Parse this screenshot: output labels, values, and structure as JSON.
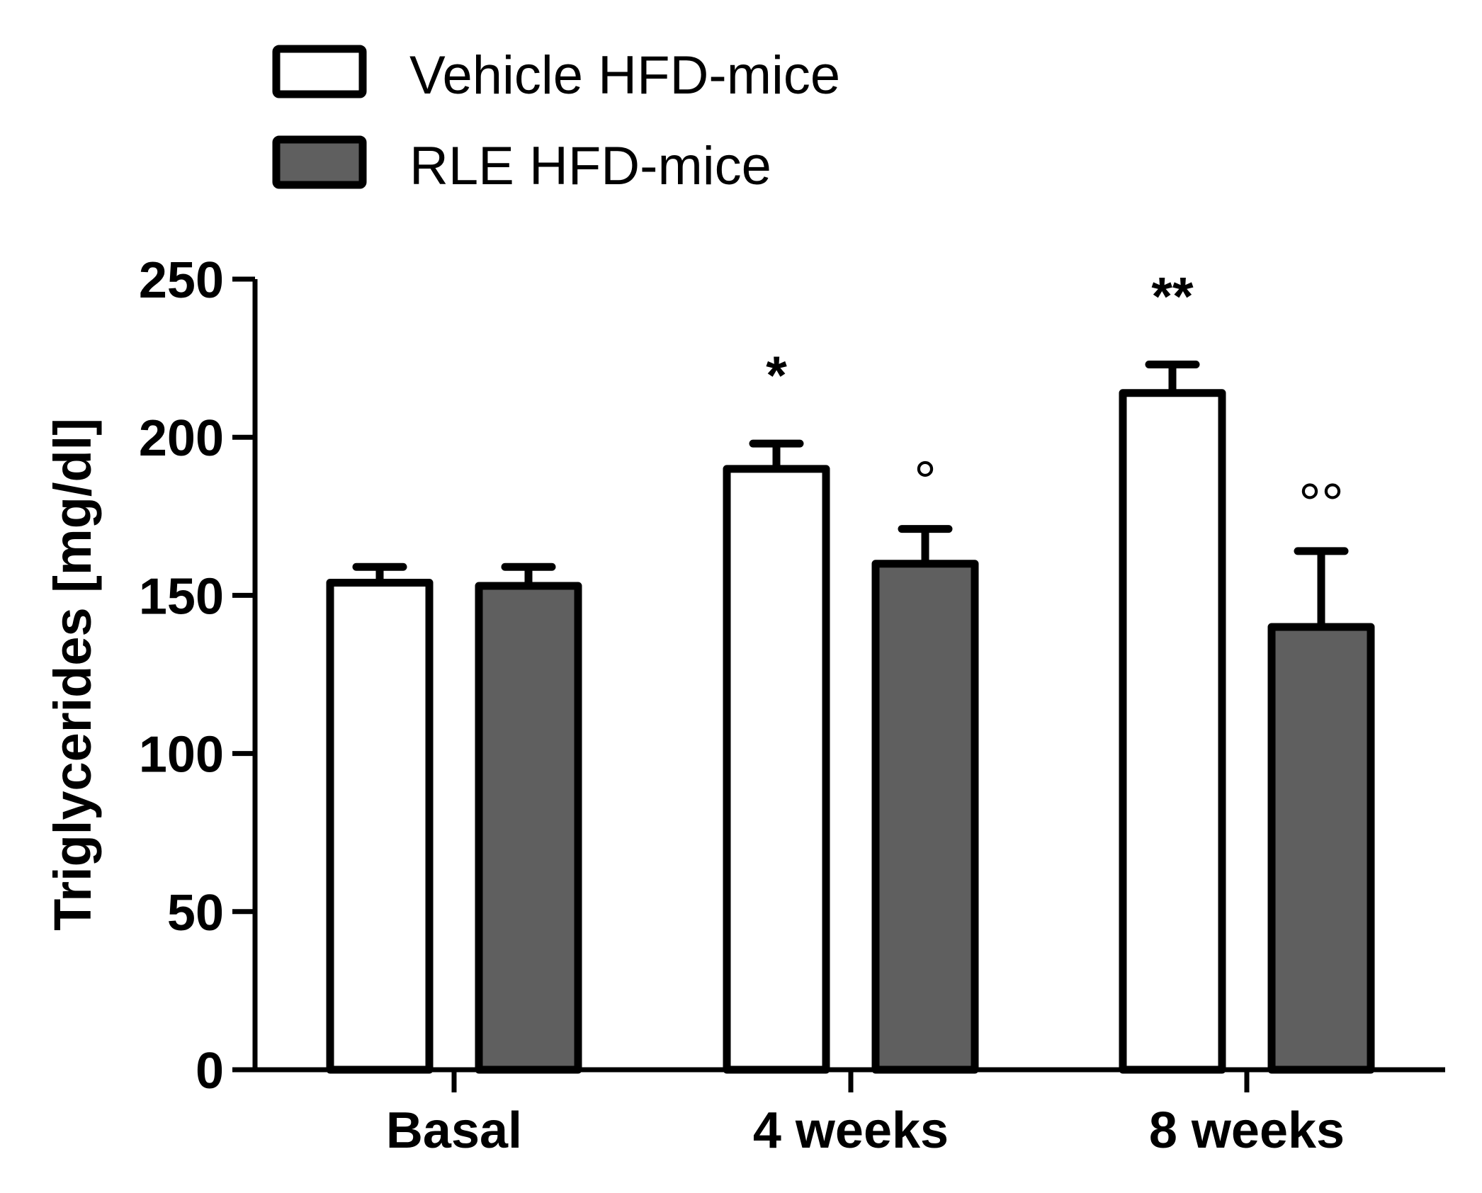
{
  "chart_data": {
    "type": "bar",
    "title": "",
    "xlabel": "",
    "ylabel": "Triglycerides [mg/dl]",
    "ylim": [
      0,
      250
    ],
    "yticks": [
      0,
      50,
      100,
      150,
      200,
      250
    ],
    "categories": [
      "Basal",
      "4 weeks",
      "8 weeks"
    ],
    "series": [
      {
        "name": "Vehicle HFD-mice",
        "color": "#ffffff",
        "values": [
          154,
          190,
          214
        ],
        "errors": [
          5,
          8,
          9
        ],
        "annotations": [
          "",
          "*",
          "**"
        ]
      },
      {
        "name": "RLE HFD-mice",
        "color": "#5f5f5f",
        "values": [
          153,
          160,
          140
        ],
        "errors": [
          6,
          11,
          24
        ],
        "annotations": [
          "",
          "°",
          "°°"
        ]
      }
    ],
    "legend_position": "top-left"
  }
}
